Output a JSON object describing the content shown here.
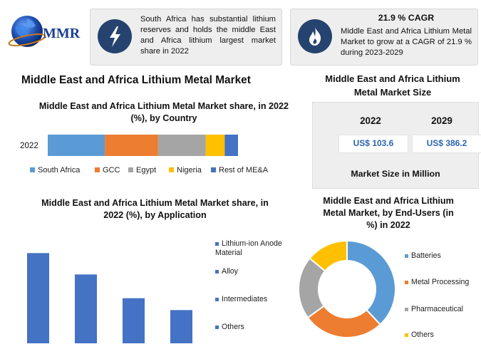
{
  "logo": {
    "text": "MMR"
  },
  "info_boxes": [
    {
      "text": "South Africa has substantial lithium reserves and holds the middle East and Africa lithium largest market share in 2022",
      "icon": "lightning-icon"
    },
    {
      "title": "21.9 % CAGR",
      "text": "Middle East and Africa Lithium Metal Market to grow at a CAGR of 21.9 % during 2023-2029",
      "icon": "flame-icon"
    }
  ],
  "main_title": "Middle East and Africa Lithium Metal Market",
  "market_size": {
    "title": "Middle East and Africa Lithium Metal Market Size",
    "years": [
      "2022",
      "2029"
    ],
    "values": [
      "US$ 103.6",
      "US$ 386.2"
    ],
    "footer": "Market Size in Million"
  },
  "colors": {
    "blue": "#5b9bd5",
    "orange": "#ed7d31",
    "gray": "#a5a5a5",
    "yellow": "#ffc000",
    "darkblue": "#4472c4",
    "navy": "#25436e"
  },
  "chart_data": [
    {
      "type": "bar",
      "orientation": "horizontal-stacked",
      "title": "Middle East and Africa Lithium Metal Market share, in 2022 (%), by Country",
      "categories": [
        "2022"
      ],
      "series": [
        {
          "name": "South Africa",
          "values": [
            30
          ]
        },
        {
          "name": "GCC",
          "values": [
            28
          ]
        },
        {
          "name": "Egypt",
          "values": [
            25
          ]
        },
        {
          "name": "Nigeria",
          "values": [
            10
          ]
        },
        {
          "name": "Rest of ME&A",
          "values": [
            7
          ]
        }
      ],
      "legend": "bottom"
    },
    {
      "type": "bar",
      "title": "Middle East and Africa Lithium Metal Market share, in 2022 (%), by Application",
      "categories": [
        "Lithium-ion Anode Material",
        "Alloy",
        "Intermediates",
        "Others"
      ],
      "values": [
        38,
        29,
        19,
        14
      ],
      "ylim": [
        0,
        45
      ],
      "legend": "right"
    },
    {
      "type": "pie",
      "title": "Middle East and Africa Lithium Metal Market, by End-Users (in %) in 2022",
      "categories": [
        "Batteries",
        "Metal Processing",
        "Pharmaceutical",
        "Others"
      ],
      "values": [
        38,
        27,
        21,
        14
      ],
      "legend": "right"
    }
  ]
}
